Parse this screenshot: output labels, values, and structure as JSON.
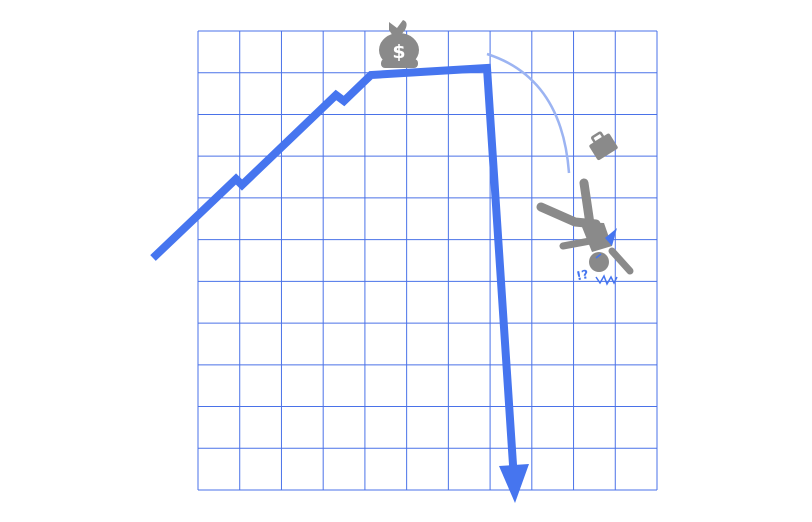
{
  "illustration": {
    "grid": {
      "columns": 11,
      "rows": 11
    },
    "money_bag_symbol": "$",
    "confusion_text": "!?",
    "icons": [
      "money-bag-icon",
      "briefcase-icon",
      "falling-person-icon"
    ],
    "colors": {
      "background": "#ffffff",
      "grid": "#4a72e8",
      "trend_line": "#4675ef",
      "figure": "#8a8a8a",
      "motion_arc": "#9cb4f2"
    }
  }
}
